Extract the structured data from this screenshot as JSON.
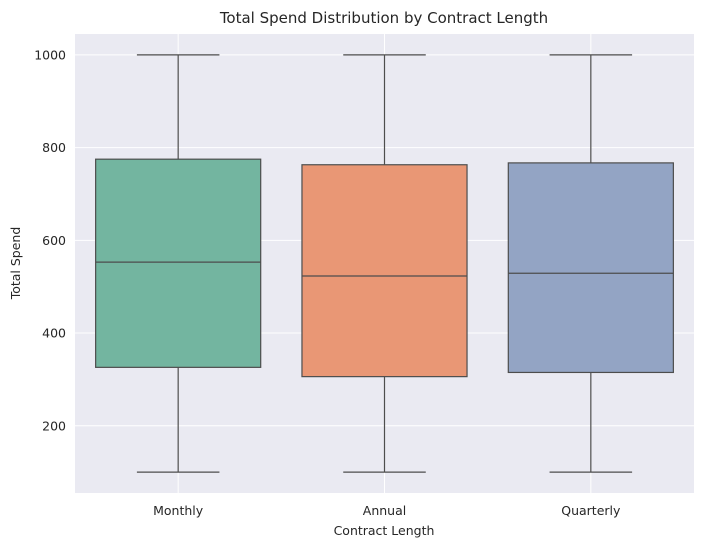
{
  "chart_data": {
    "type": "box",
    "title": "Total Spend Distribution by Contract Length",
    "xlabel": "Contract Length",
    "ylabel": "Total Spend",
    "ylim": [
      55,
      1045
    ],
    "yticks": [
      200,
      400,
      600,
      800,
      1000
    ],
    "grid": true,
    "categories": [
      "Monthly",
      "Annual",
      "Quarterly"
    ],
    "boxes": [
      {
        "category": "Monthly",
        "color": "#73b5a0",
        "whisker_low": 100,
        "q1": 326,
        "median": 553,
        "q3": 775,
        "whisker_high": 1000
      },
      {
        "category": "Annual",
        "color": "#e99775",
        "whisker_low": 100,
        "q1": 306,
        "median": 523,
        "q3": 763,
        "whisker_high": 1000
      },
      {
        "category": "Quarterly",
        "color": "#93a4c4",
        "whisker_low": 100,
        "q1": 315,
        "median": 529,
        "q3": 767,
        "whisker_high": 1000
      }
    ]
  }
}
